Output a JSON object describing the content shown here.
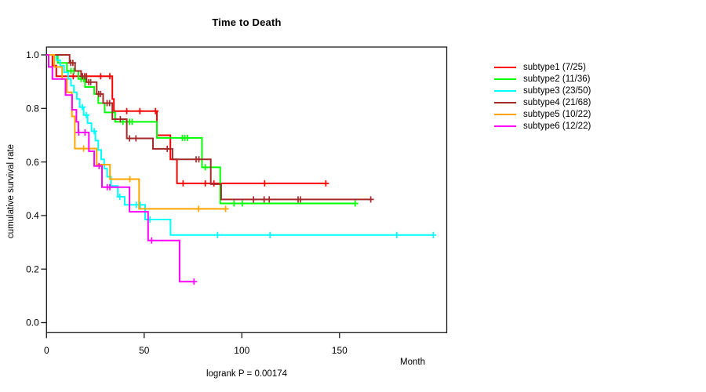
{
  "window": {
    "background": "#ffffff"
  },
  "chart_data": {
    "type": "line",
    "subtype": "kaplan-meier-step-survival",
    "title": "Time to Death",
    "xlabel": "Month",
    "ylabel": "cumulative survival rate",
    "annotation": "logrank P = 0.00174",
    "xlim": [
      0,
      205
    ],
    "ylim": [
      0,
      1.0
    ],
    "xticks": [
      0,
      50,
      100,
      150
    ],
    "yticks": [
      0.0,
      0.2,
      0.4,
      0.6,
      0.8,
      1.0
    ],
    "grid": false,
    "legend_position": "right",
    "axis_color": "#1a1a1a",
    "series": [
      {
        "name": "subtype1 (7/25)",
        "color": "#ff0000",
        "steps": [
          [
            0,
            1
          ],
          [
            3,
            1
          ],
          [
            3,
            0.96
          ],
          [
            5,
            0.96
          ],
          [
            5,
            0.92
          ],
          [
            33.7,
            0.92
          ],
          [
            33.7,
            0.835
          ],
          [
            34.5,
            0.835
          ],
          [
            34.5,
            0.79
          ],
          [
            56.5,
            0.79
          ],
          [
            56.5,
            0.7
          ],
          [
            63.4,
            0.7
          ],
          [
            63.4,
            0.61
          ],
          [
            66.8,
            0.61
          ],
          [
            66.8,
            0.52
          ],
          [
            143,
            0.52
          ]
        ],
        "censors": [
          [
            13.7,
            0.92
          ],
          [
            18.3,
            0.92
          ],
          [
            20.4,
            0.92
          ],
          [
            27.7,
            0.92
          ],
          [
            32.4,
            0.92
          ],
          [
            41.1,
            0.79
          ],
          [
            47.8,
            0.79
          ],
          [
            55.8,
            0.79
          ],
          [
            69.9,
            0.52
          ],
          [
            81.3,
            0.52
          ],
          [
            85.7,
            0.52
          ],
          [
            111.7,
            0.52
          ],
          [
            143,
            0.52
          ]
        ]
      },
      {
        "name": "subtype2 (11/36)",
        "color": "#00ff00",
        "steps": [
          [
            0,
            1
          ],
          [
            5.8,
            1
          ],
          [
            5.8,
            0.97
          ],
          [
            10.5,
            0.97
          ],
          [
            10.5,
            0.94
          ],
          [
            16.3,
            0.94
          ],
          [
            16.3,
            0.91
          ],
          [
            19.7,
            0.91
          ],
          [
            19.7,
            0.88
          ],
          [
            24.4,
            0.88
          ],
          [
            24.4,
            0.854
          ],
          [
            26.5,
            0.854
          ],
          [
            26.5,
            0.82
          ],
          [
            29.8,
            0.82
          ],
          [
            29.8,
            0.785
          ],
          [
            35.1,
            0.785
          ],
          [
            35.1,
            0.75
          ],
          [
            56.5,
            0.75
          ],
          [
            56.5,
            0.69
          ],
          [
            79.6,
            0.69
          ],
          [
            79.6,
            0.58
          ],
          [
            88.9,
            0.58
          ],
          [
            88.9,
            0.445
          ],
          [
            158,
            0.445
          ]
        ],
        "censors": [
          [
            12.5,
            0.94
          ],
          [
            14,
            0.94
          ],
          [
            17.7,
            0.91
          ],
          [
            19,
            0.91
          ],
          [
            39.1,
            0.75
          ],
          [
            42.5,
            0.75
          ],
          [
            43.8,
            0.75
          ],
          [
            69.5,
            0.69
          ],
          [
            70.8,
            0.69
          ],
          [
            72.2,
            0.69
          ],
          [
            81.3,
            0.58
          ],
          [
            96,
            0.445
          ],
          [
            100.2,
            0.445
          ],
          [
            158,
            0.445
          ]
        ]
      },
      {
        "name": "subtype3 (23/50)",
        "color": "#00ffff",
        "steps": [
          [
            0,
            1
          ],
          [
            5,
            1
          ],
          [
            5,
            0.98
          ],
          [
            7,
            0.98
          ],
          [
            7,
            0.96
          ],
          [
            9,
            0.96
          ],
          [
            9,
            0.935
          ],
          [
            11,
            0.935
          ],
          [
            11,
            0.91
          ],
          [
            12.5,
            0.91
          ],
          [
            12.5,
            0.885
          ],
          [
            14,
            0.885
          ],
          [
            14,
            0.86
          ],
          [
            15.5,
            0.86
          ],
          [
            15.5,
            0.835
          ],
          [
            17,
            0.835
          ],
          [
            17,
            0.805
          ],
          [
            19,
            0.805
          ],
          [
            19,
            0.775
          ],
          [
            21,
            0.775
          ],
          [
            21,
            0.745
          ],
          [
            23,
            0.745
          ],
          [
            23,
            0.715
          ],
          [
            25,
            0.715
          ],
          [
            25,
            0.68
          ],
          [
            26.5,
            0.68
          ],
          [
            26.5,
            0.645
          ],
          [
            28,
            0.645
          ],
          [
            28,
            0.61
          ],
          [
            29.5,
            0.61
          ],
          [
            29.5,
            0.575
          ],
          [
            31,
            0.575
          ],
          [
            31,
            0.545
          ],
          [
            33,
            0.545
          ],
          [
            33,
            0.51
          ],
          [
            36.5,
            0.51
          ],
          [
            36.5,
            0.47
          ],
          [
            40,
            0.47
          ],
          [
            40,
            0.44
          ],
          [
            50.5,
            0.44
          ],
          [
            50.5,
            0.385
          ],
          [
            63.5,
            0.385
          ],
          [
            63.5,
            0.327
          ],
          [
            198,
            0.327
          ]
        ],
        "censors": [
          [
            18.4,
            0.805
          ],
          [
            20.4,
            0.775
          ],
          [
            24.4,
            0.715
          ],
          [
            37.5,
            0.47
          ],
          [
            46,
            0.44
          ],
          [
            48,
            0.44
          ],
          [
            53,
            0.385
          ],
          [
            87.6,
            0.327
          ],
          [
            114.4,
            0.327
          ],
          [
            179.3,
            0.327
          ],
          [
            198,
            0.327
          ]
        ]
      },
      {
        "name": "subtype4 (21/68)",
        "color": "#a52a2a",
        "steps": [
          [
            0,
            1
          ],
          [
            11.8,
            1
          ],
          [
            11.8,
            0.97
          ],
          [
            14.6,
            0.97
          ],
          [
            14.6,
            0.94
          ],
          [
            17.7,
            0.94
          ],
          [
            17.7,
            0.92
          ],
          [
            20.5,
            0.92
          ],
          [
            20.5,
            0.898
          ],
          [
            25.7,
            0.898
          ],
          [
            25.7,
            0.854
          ],
          [
            29,
            0.854
          ],
          [
            29,
            0.82
          ],
          [
            33.7,
            0.82
          ],
          [
            33.7,
            0.76
          ],
          [
            41.1,
            0.76
          ],
          [
            41.1,
            0.688
          ],
          [
            54.5,
            0.688
          ],
          [
            54.5,
            0.649
          ],
          [
            64.5,
            0.649
          ],
          [
            64.5,
            0.61
          ],
          [
            84.1,
            0.61
          ],
          [
            84.1,
            0.517
          ],
          [
            89.4,
            0.517
          ],
          [
            89.4,
            0.46
          ],
          [
            166,
            0.46
          ]
        ],
        "censors": [
          [
            12.4,
            0.97
          ],
          [
            13.5,
            0.97
          ],
          [
            18.4,
            0.92
          ],
          [
            19.5,
            0.92
          ],
          [
            21.6,
            0.898
          ],
          [
            22.6,
            0.898
          ],
          [
            26.7,
            0.854
          ],
          [
            27.7,
            0.854
          ],
          [
            31,
            0.82
          ],
          [
            32.3,
            0.82
          ],
          [
            37.8,
            0.76
          ],
          [
            42.5,
            0.688
          ],
          [
            45.8,
            0.688
          ],
          [
            61.8,
            0.649
          ],
          [
            76.6,
            0.61
          ],
          [
            78,
            0.61
          ],
          [
            106,
            0.46
          ],
          [
            111.4,
            0.46
          ],
          [
            114,
            0.46
          ],
          [
            128.8,
            0.46
          ],
          [
            130.1,
            0.46
          ],
          [
            166,
            0.46
          ]
        ]
      },
      {
        "name": "subtype5 (10/22)",
        "color": "#ffa500",
        "steps": [
          [
            0,
            1
          ],
          [
            4,
            1
          ],
          [
            4,
            0.955
          ],
          [
            8,
            0.955
          ],
          [
            8,
            0.91
          ],
          [
            10.5,
            0.91
          ],
          [
            10.5,
            0.86
          ],
          [
            13,
            0.86
          ],
          [
            13,
            0.77
          ],
          [
            14.5,
            0.77
          ],
          [
            14.5,
            0.65
          ],
          [
            25.7,
            0.65
          ],
          [
            25.7,
            0.59
          ],
          [
            32.5,
            0.59
          ],
          [
            32.5,
            0.536
          ],
          [
            47.4,
            0.536
          ],
          [
            47.4,
            0.425
          ],
          [
            91.7,
            0.425
          ]
        ],
        "censors": [
          [
            19,
            0.65
          ],
          [
            42.7,
            0.536
          ],
          [
            77.9,
            0.425
          ],
          [
            91.7,
            0.425
          ]
        ]
      },
      {
        "name": "subtype6 (12/22)",
        "color": "#ff00ff",
        "steps": [
          [
            0,
            1
          ],
          [
            1.1,
            1
          ],
          [
            1.1,
            0.955
          ],
          [
            3,
            0.955
          ],
          [
            3,
            0.91
          ],
          [
            9.7,
            0.91
          ],
          [
            9.7,
            0.85
          ],
          [
            13.1,
            0.85
          ],
          [
            13.1,
            0.795
          ],
          [
            15.3,
            0.795
          ],
          [
            15.3,
            0.75
          ],
          [
            16.3,
            0.75
          ],
          [
            16.3,
            0.71
          ],
          [
            21.7,
            0.71
          ],
          [
            21.7,
            0.64
          ],
          [
            24.4,
            0.64
          ],
          [
            24.4,
            0.585
          ],
          [
            28.4,
            0.585
          ],
          [
            28.4,
            0.506
          ],
          [
            42.5,
            0.506
          ],
          [
            42.5,
            0.414
          ],
          [
            52,
            0.414
          ],
          [
            52,
            0.307
          ],
          [
            68.1,
            0.307
          ],
          [
            68.1,
            0.153
          ],
          [
            75.5,
            0.153
          ]
        ],
        "censors": [
          [
            16.5,
            0.71
          ],
          [
            19.7,
            0.71
          ],
          [
            26.9,
            0.585
          ],
          [
            31.1,
            0.506
          ],
          [
            32.4,
            0.506
          ],
          [
            53.8,
            0.307
          ],
          [
            75.5,
            0.153
          ]
        ]
      }
    ]
  }
}
